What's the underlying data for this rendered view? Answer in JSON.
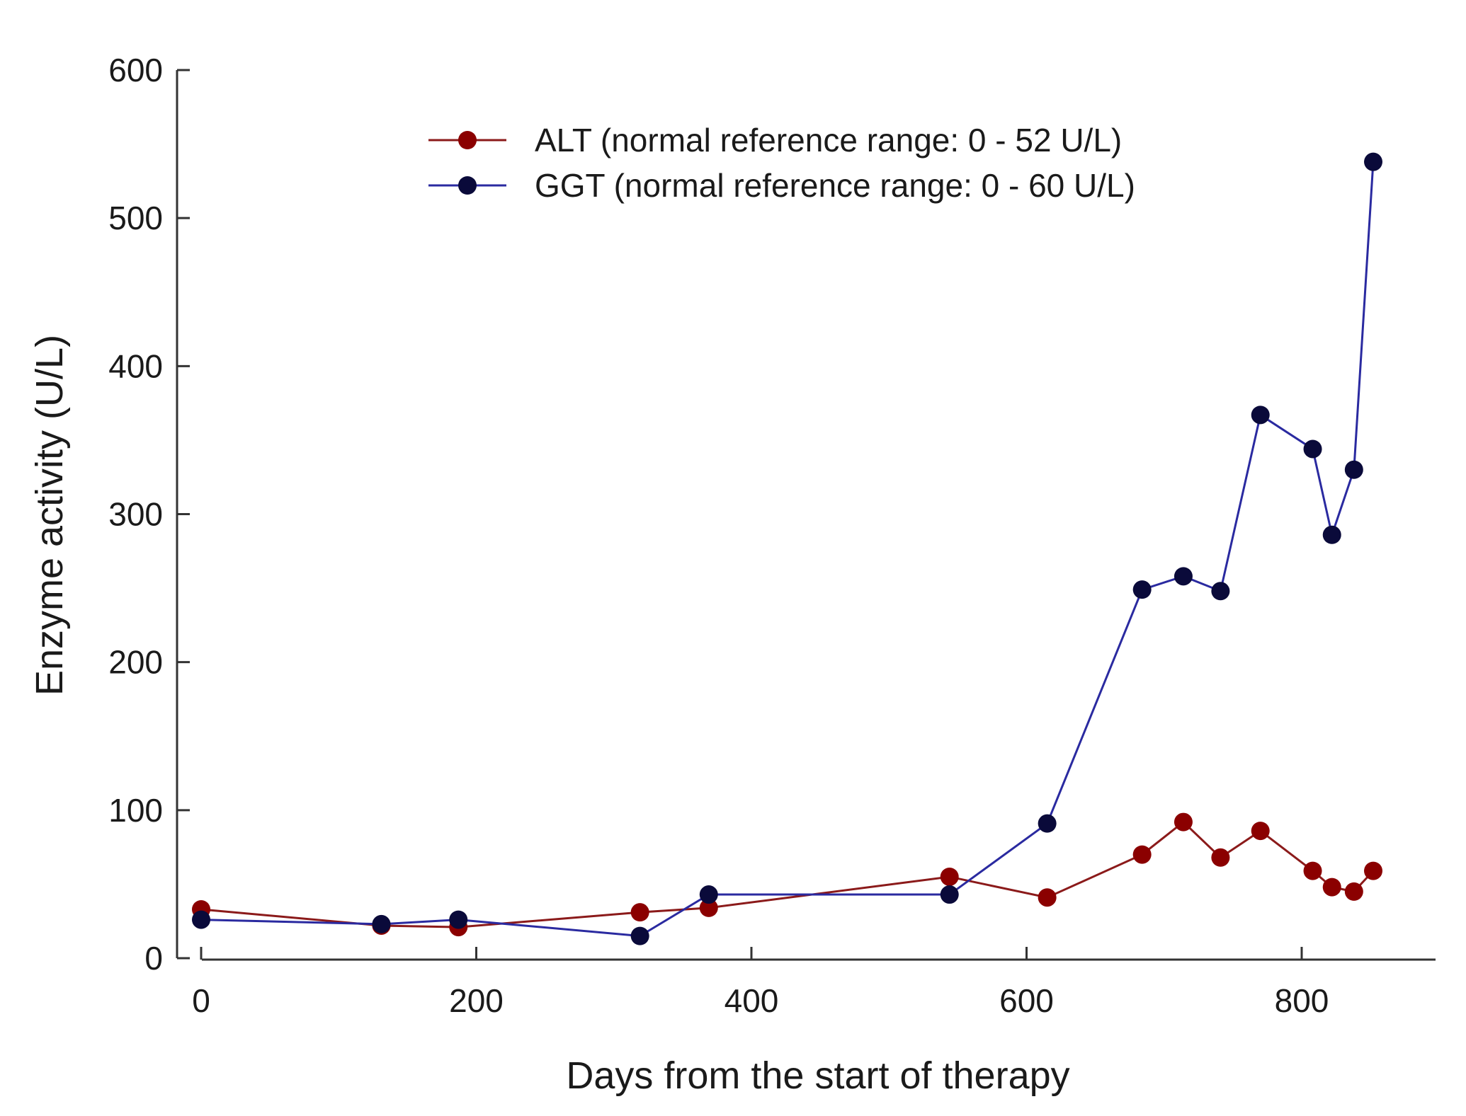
{
  "chart_data": {
    "type": "line",
    "title": "",
    "xlabel": "Days from the start of therapy",
    "ylabel": "Enzyme activity (U/L)",
    "xlim": [
      -10,
      900
    ],
    "ylim": [
      0,
      600
    ],
    "xticks": [
      0,
      200,
      400,
      600,
      800
    ],
    "yticks": [
      0,
      100,
      200,
      300,
      400,
      500,
      600
    ],
    "grid": false,
    "legend_position": "top-center",
    "series": [
      {
        "name": "ALT (normal reference range: 0 - 52 U/L)",
        "color": "#8b1a1a",
        "x": [
          0,
          131,
          187,
          319,
          369,
          544,
          615,
          684,
          714,
          741,
          770,
          808,
          822,
          838,
          852
        ],
        "y": [
          33,
          22,
          21,
          31,
          34,
          55,
          41,
          70,
          92,
          68,
          86,
          59,
          48,
          45,
          59
        ]
      },
      {
        "name": "GGT (normal reference range: 0 - 60 U/L)",
        "color": "#2a2aa0",
        "x": [
          0,
          131,
          187,
          319,
          369,
          544,
          615,
          684,
          714,
          741,
          770,
          808,
          822,
          838,
          852
        ],
        "y": [
          26,
          23,
          26,
          15,
          43,
          43,
          91,
          249,
          258,
          248,
          367,
          344,
          286,
          330,
          538
        ]
      }
    ]
  }
}
